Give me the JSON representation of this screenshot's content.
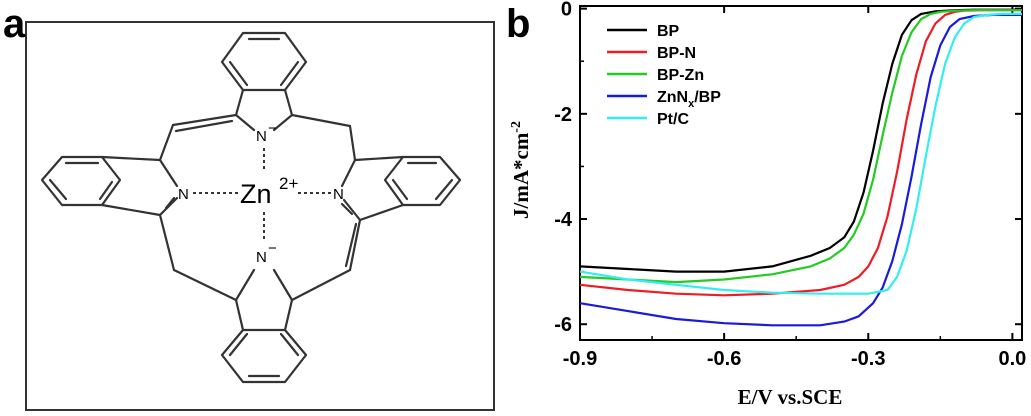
{
  "panel_a": {
    "label": "a",
    "metal": "Zn",
    "metal_charge": "2+",
    "atoms": {
      "n_top": "N",
      "n_top_charge": "−",
      "n_bottom": "N",
      "n_bottom_charge": "−",
      "n_left": "N",
      "n_right": "N"
    }
  },
  "panel_b": {
    "label": "b"
  },
  "chart_data": {
    "type": "line",
    "xlabel": "E/V vs.SCE",
    "ylabel": "J/mA*cm",
    "ylabel_sup": "-2",
    "xlim": [
      -0.9,
      0.02
    ],
    "ylim": [
      -6.3,
      0.05
    ],
    "xticks": [
      -0.9,
      -0.6,
      -0.3,
      0.0
    ],
    "xtick_labels": [
      "-0.9",
      "-0.6",
      "-0.3",
      "0.0"
    ],
    "yticks": [
      0,
      -2,
      -4,
      -6
    ],
    "ytick_labels": [
      "0",
      "-2",
      "-4",
      "-6"
    ],
    "legend_position": "top-left",
    "series": [
      {
        "name": "BP",
        "legend_main": "BP",
        "legend_sub": "",
        "legend_tail": "",
        "color": "#000000",
        "x": [
          -0.9,
          -0.8,
          -0.7,
          -0.6,
          -0.5,
          -0.42,
          -0.38,
          -0.35,
          -0.33,
          -0.31,
          -0.29,
          -0.27,
          -0.25,
          -0.23,
          -0.21,
          -0.19,
          -0.16,
          -0.12,
          -0.08,
          -0.04,
          0.0,
          0.02
        ],
        "y": [
          -4.9,
          -4.95,
          -5.0,
          -5.0,
          -4.9,
          -4.7,
          -4.55,
          -4.35,
          -4.05,
          -3.5,
          -2.7,
          -1.8,
          -1.05,
          -0.5,
          -0.22,
          -0.1,
          -0.05,
          -0.03,
          -0.02,
          -0.02,
          -0.02,
          -0.02
        ]
      },
      {
        "name": "BP-N",
        "legend_main": "BP-N",
        "legend_sub": "",
        "legend_tail": "",
        "color": "#ee1c24",
        "x": [
          -0.9,
          -0.8,
          -0.7,
          -0.6,
          -0.5,
          -0.4,
          -0.35,
          -0.32,
          -0.3,
          -0.28,
          -0.26,
          -0.24,
          -0.22,
          -0.2,
          -0.18,
          -0.16,
          -0.14,
          -0.12,
          -0.1,
          -0.06,
          -0.02,
          0.02
        ],
        "y": [
          -5.25,
          -5.35,
          -5.42,
          -5.45,
          -5.42,
          -5.35,
          -5.25,
          -5.1,
          -4.9,
          -4.55,
          -3.95,
          -3.1,
          -2.1,
          -1.25,
          -0.62,
          -0.28,
          -0.12,
          -0.06,
          -0.04,
          -0.03,
          -0.03,
          -0.03
        ]
      },
      {
        "name": "BP-Zn",
        "legend_main": "BP-Zn",
        "legend_sub": "",
        "legend_tail": "",
        "color": "#22cc22",
        "x": [
          -0.9,
          -0.8,
          -0.7,
          -0.6,
          -0.5,
          -0.42,
          -0.38,
          -0.35,
          -0.33,
          -0.31,
          -0.29,
          -0.27,
          -0.25,
          -0.23,
          -0.21,
          -0.19,
          -0.17,
          -0.15,
          -0.12,
          -0.08,
          -0.04,
          0.02
        ],
        "y": [
          -5.1,
          -5.15,
          -5.2,
          -5.15,
          -5.05,
          -4.9,
          -4.75,
          -4.55,
          -4.3,
          -3.9,
          -3.25,
          -2.4,
          -1.6,
          -0.9,
          -0.45,
          -0.2,
          -0.1,
          -0.06,
          -0.04,
          -0.03,
          -0.03,
          -0.03
        ]
      },
      {
        "name": "ZnNx/BP",
        "legend_main": "ZnN",
        "legend_sub": "x",
        "legend_tail": "/BP",
        "color": "#1a1adc",
        "x": [
          -0.9,
          -0.8,
          -0.7,
          -0.6,
          -0.5,
          -0.4,
          -0.35,
          -0.32,
          -0.29,
          -0.27,
          -0.25,
          -0.23,
          -0.21,
          -0.19,
          -0.17,
          -0.15,
          -0.13,
          -0.11,
          -0.08,
          -0.04,
          0.0,
          0.02
        ],
        "y": [
          -5.6,
          -5.75,
          -5.9,
          -5.98,
          -6.02,
          -6.02,
          -5.95,
          -5.85,
          -5.6,
          -5.3,
          -4.8,
          -4.1,
          -3.2,
          -2.2,
          -1.3,
          -0.7,
          -0.35,
          -0.2,
          -0.14,
          -0.12,
          -0.12,
          -0.12
        ]
      },
      {
        "name": "Pt/C",
        "legend_main": "Pt/C",
        "legend_sub": "",
        "legend_tail": "",
        "color": "#33eeee",
        "x": [
          -0.9,
          -0.8,
          -0.7,
          -0.6,
          -0.5,
          -0.4,
          -0.3,
          -0.26,
          -0.24,
          -0.22,
          -0.2,
          -0.18,
          -0.16,
          -0.14,
          -0.12,
          -0.1,
          -0.08,
          -0.05,
          -0.02,
          0.02
        ],
        "y": [
          -5.0,
          -5.15,
          -5.25,
          -5.35,
          -5.4,
          -5.42,
          -5.42,
          -5.35,
          -5.1,
          -4.6,
          -3.8,
          -2.8,
          -1.85,
          -1.05,
          -0.55,
          -0.28,
          -0.16,
          -0.12,
          -0.1,
          -0.1
        ]
      }
    ]
  }
}
